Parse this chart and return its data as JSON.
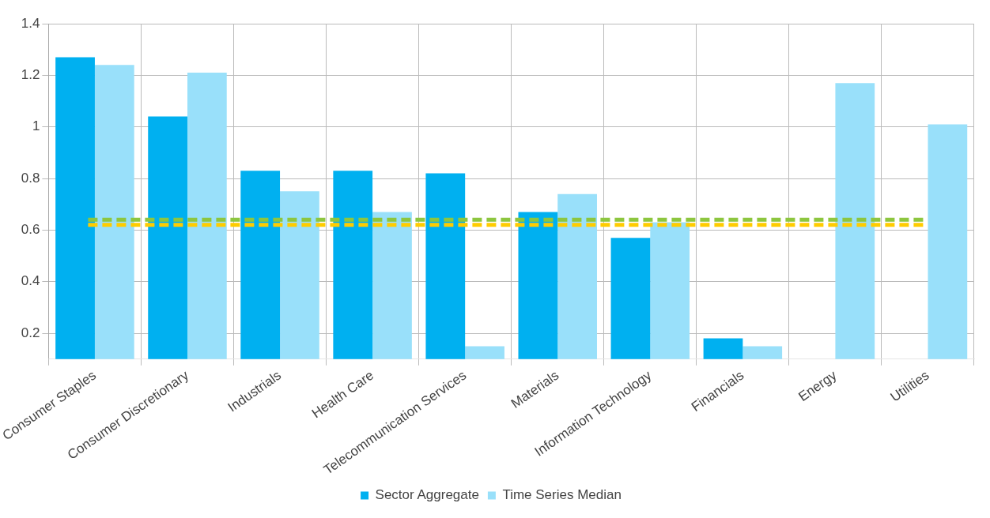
{
  "chart_data": {
    "type": "bar",
    "categories": [
      "Consumer Staples",
      "Consumer Discretionary",
      "Industrials",
      "Health Care",
      "Telecommunication Services",
      "Materials",
      "Information Technology",
      "Financials",
      "Energy",
      "Utilities"
    ],
    "series": [
      {
        "name": "Sector Aggregate",
        "color": "#00b0f0",
        "values": [
          1.27,
          1.04,
          0.83,
          0.83,
          0.82,
          0.67,
          0.57,
          0.18,
          null,
          null
        ]
      },
      {
        "name": "Time Series Median",
        "color": "#99e0fa",
        "values": [
          1.24,
          1.21,
          0.75,
          0.67,
          0.15,
          0.74,
          0.63,
          0.15,
          1.17,
          1.01
        ]
      }
    ],
    "ylim": [
      0.1,
      1.4
    ],
    "yticks": [
      0.2,
      0.4,
      0.6,
      0.8,
      1,
      1.2,
      1.4
    ],
    "ref_lines": [
      {
        "axis": "y",
        "value": 0.64,
        "color": "#8dc63f",
        "line_style": "dashed"
      },
      {
        "axis": "y",
        "value": 0.62,
        "color": "#ffcc00",
        "line_style": "dashed"
      }
    ],
    "grid": true,
    "legend": "bottom"
  }
}
